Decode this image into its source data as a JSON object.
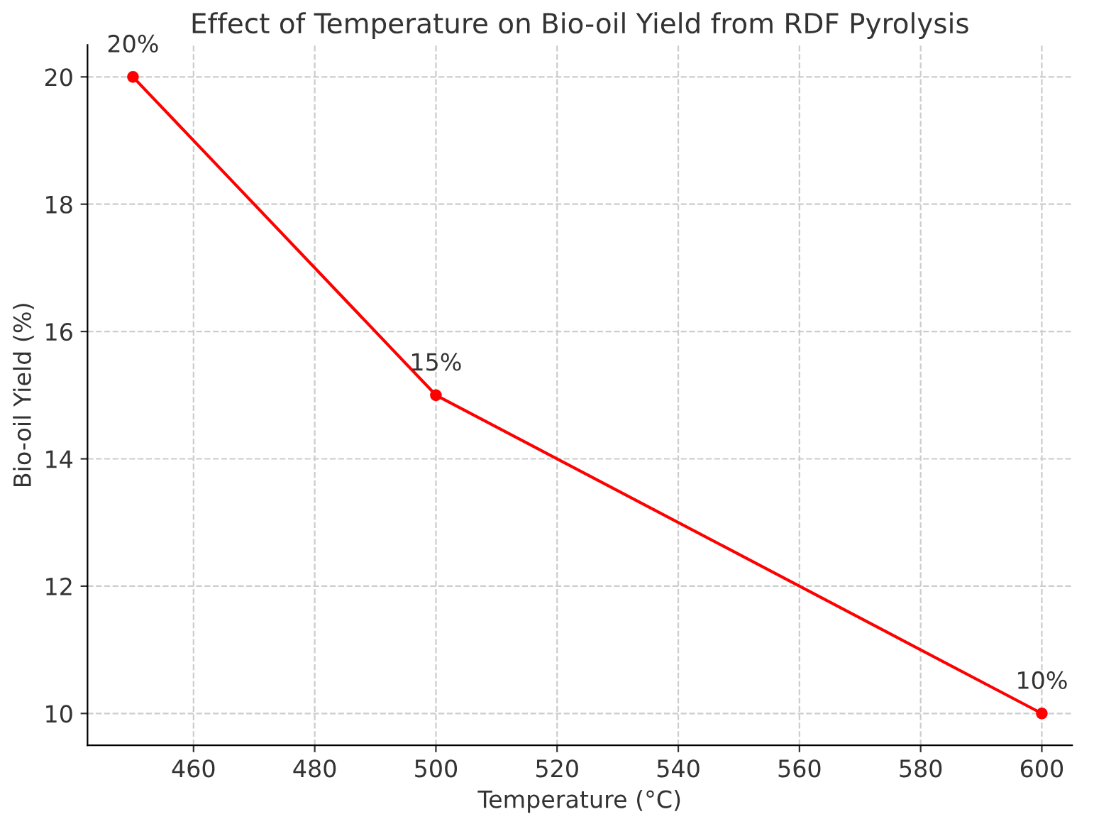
{
  "chart_data": {
    "type": "line",
    "title": "Effect of Temperature on Bio-oil Yield from RDF Pyrolysis",
    "xlabel": "Temperature (°C)",
    "ylabel": "Bio-oil Yield (%)",
    "x": [
      450,
      500,
      600
    ],
    "series": [
      {
        "color": "#ff0000",
        "values": [
          20,
          15,
          10
        ],
        "value_labels": [
          "20%",
          "15%",
          "10%"
        ]
      }
    ],
    "xlim": [
      442.5,
      605
    ],
    "xticks": [
      460,
      480,
      500,
      520,
      540,
      560,
      580,
      600
    ],
    "ylim": [
      9.5,
      20.5
    ],
    "yticks": [
      10,
      12,
      14,
      16,
      18,
      20
    ],
    "grid": true,
    "marker": "circle",
    "line_style": "solid"
  }
}
